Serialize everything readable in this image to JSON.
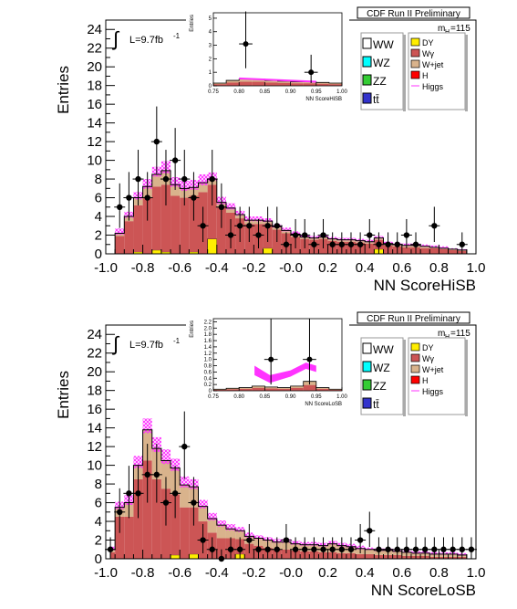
{
  "colors": {
    "WW": "#ffffff",
    "WZ": "#00ffff",
    "ZZ": "#33cc33",
    "tt": "#3333cc",
    "DY": "#ffee00",
    "Wgamma": "#cc5555",
    "Wjet": "#d9b38c",
    "H": "#ff0000",
    "Higgs": "#ff33ff",
    "data": "#000000"
  },
  "panels": [
    {
      "header": "CDF Run II Preliminary",
      "mass_label": "m",
      "mass_sub": "H",
      "mass_value": "=115",
      "lumi": "L=9.7fb",
      "lumi_sup": "-1",
      "integral_sign": "∫",
      "legend_left": [
        "WW",
        "WZ",
        "ZZ",
        "tt̄"
      ],
      "legend_right": [
        "DY",
        "Wγ",
        "W+jet",
        "H",
        "Higgs"
      ],
      "inset": {
        "ylabel": "Entries",
        "xlabel": "NN ScoreHiSB",
        "x_ticks": [
          "0.75",
          "0.80",
          "0.85",
          "0.90",
          "0.95",
          "1.00"
        ],
        "y_ticks": [
          "0",
          "1",
          "2",
          "3",
          "4",
          "5"
        ],
        "xlim": [
          0.75,
          1.0
        ],
        "ylim": [
          0,
          5.4
        ],
        "bkg_edges": [
          0.75,
          0.775,
          0.8,
          0.825,
          0.85,
          0.875,
          0.9,
          0.925,
          0.95,
          0.975,
          1.0
        ],
        "bkg_values": [
          0.2,
          0.4,
          0.5,
          0.5,
          0.4,
          0.35,
          0.3,
          0.3,
          0.25,
          0.2
        ],
        "points": [
          {
            "x": 0.813,
            "y": 3.1,
            "ex": 0.013,
            "eyl": 1.8,
            "eyh": 2.4
          },
          {
            "x": 0.94,
            "y": 1.0,
            "ex": 0.013,
            "eyl": 0.8,
            "eyh": 1.3
          }
        ]
      },
      "chart_data": {
        "type": "bar",
        "xlabel": "NN ScoreHiSB",
        "ylabel": "Entries",
        "xlim": [
          -1.0,
          1.0
        ],
        "ylim": [
          0,
          25
        ],
        "x_ticks": [
          "-1.0",
          "-0.8",
          "-0.6",
          "-0.4",
          "-0.2",
          "-0.0",
          "0.2",
          "0.4",
          "0.6",
          "0.8",
          "1.0"
        ],
        "y_ticks": [
          "0",
          "2",
          "4",
          "6",
          "8",
          "10",
          "12",
          "14",
          "16",
          "18",
          "20",
          "22",
          "24"
        ],
        "bin_edges": [
          -0.95,
          -0.9,
          -0.85,
          -0.8,
          -0.75,
          -0.7,
          -0.65,
          -0.6,
          -0.55,
          -0.5,
          -0.45,
          -0.4,
          -0.35,
          -0.3,
          -0.25,
          -0.2,
          -0.15,
          -0.1,
          -0.05,
          0.0,
          0.05,
          0.1,
          0.15,
          0.2,
          0.25,
          0.3,
          0.35,
          0.4,
          0.45,
          0.5,
          0.55,
          0.6,
          0.65,
          0.7,
          0.75,
          0.8,
          0.85,
          0.9,
          0.95
        ],
        "wgamma": [
          1.9,
          3.5,
          5.0,
          6.0,
          6.8,
          7.2,
          6.2,
          6.0,
          6.0,
          6.6,
          5.8,
          5.0,
          4.4,
          3.8,
          3.2,
          3.2,
          2.6,
          2.6,
          2.2,
          1.8,
          1.6,
          1.5,
          1.6,
          1.4,
          1.3,
          1.3,
          1.2,
          1.1,
          1.0,
          0.9,
          0.8,
          0.7,
          0.7,
          0.6,
          0.6,
          0.5,
          0.4,
          0.3
        ],
        "wjet": [
          0.3,
          0.5,
          0.8,
          1.2,
          1.3,
          1.5,
          1.2,
          1.0,
          0.9,
          1.0,
          0.6,
          0.5,
          0.5,
          0.4,
          0.4,
          0.4,
          0.3,
          0.3,
          0.3,
          0.3,
          0.2,
          0.2,
          0.2,
          0.2,
          0.2,
          0.2,
          0.2,
          0.2,
          0.2,
          0.2,
          0.2,
          0.2,
          0.2,
          0.2,
          0.1,
          0.1,
          0.1,
          0.1
        ],
        "dy": [
          0,
          0,
          0.2,
          0,
          0.4,
          0.2,
          0,
          0,
          0.2,
          0,
          1.6,
          0,
          0,
          0,
          0,
          0,
          0.6,
          0,
          0,
          0,
          0,
          0,
          0,
          0,
          0,
          0,
          0,
          0,
          0.5,
          0,
          0,
          0,
          0,
          0,
          0,
          0,
          0,
          0
        ],
        "band": [
          0.5,
          0.5,
          0.6,
          0.8,
          0.8,
          1.0,
          0.8,
          0.8,
          0.8,
          0.9,
          0.7,
          0.6,
          0.5,
          0.4,
          0.4,
          0.4,
          0.3,
          0.3,
          0.3,
          0.3,
          0.2,
          0.2,
          0.2,
          0.2,
          0.2,
          0.2,
          0.2,
          0.2,
          0.2,
          0.2,
          0.2,
          0.2,
          0.2,
          0.2,
          0.2,
          0.2,
          0.1,
          0.1
        ],
        "data_points": [
          {
            "x": -0.925,
            "y": 5
          },
          {
            "x": -0.875,
            "y": 6
          },
          {
            "x": -0.825,
            "y": 8
          },
          {
            "x": -0.775,
            "y": 6
          },
          {
            "x": -0.725,
            "y": 12
          },
          {
            "x": -0.675,
            "y": 8
          },
          {
            "x": -0.625,
            "y": 10
          },
          {
            "x": -0.575,
            "y": 8
          },
          {
            "x": -0.525,
            "y": 6
          },
          {
            "x": -0.475,
            "y": 3
          },
          {
            "x": -0.425,
            "y": 8
          },
          {
            "x": -0.375,
            "y": 5
          },
          {
            "x": -0.325,
            "y": 2
          },
          {
            "x": -0.275,
            "y": 3
          },
          {
            "x": -0.225,
            "y": 3
          },
          {
            "x": -0.175,
            "y": 2
          },
          {
            "x": -0.125,
            "y": 3
          },
          {
            "x": -0.075,
            "y": 3
          },
          {
            "x": -0.025,
            "y": 1
          },
          {
            "x": 0.025,
            "y": 2
          },
          {
            "x": 0.075,
            "y": 2
          },
          {
            "x": 0.125,
            "y": 1
          },
          {
            "x": 0.175,
            "y": 2
          },
          {
            "x": 0.225,
            "y": 1
          },
          {
            "x": 0.275,
            "y": 1
          },
          {
            "x": 0.325,
            "y": 1
          },
          {
            "x": 0.375,
            "y": 1
          },
          {
            "x": 0.425,
            "y": 2
          },
          {
            "x": 0.475,
            "y": 1
          },
          {
            "x": 0.525,
            "y": 1
          },
          {
            "x": 0.575,
            "y": 1
          },
          {
            "x": 0.625,
            "y": 2
          },
          {
            "x": 0.675,
            "y": 1
          },
          {
            "x": 0.775,
            "y": 3
          },
          {
            "x": 0.925,
            "y": 1
          }
        ]
      }
    },
    {
      "header": "CDF Run II Preliminary",
      "mass_label": "m",
      "mass_sub": "H",
      "mass_value": "=115",
      "lumi": "L=9.7fb",
      "lumi_sup": "-1",
      "integral_sign": "∫",
      "legend_left": [
        "WW",
        "WZ",
        "ZZ",
        "tt̄"
      ],
      "legend_right": [
        "DY",
        "Wγ",
        "W+jet",
        "H",
        "Higgs"
      ],
      "inset": {
        "ylabel": "Entries",
        "xlabel": "NN ScoreLoSB",
        "x_ticks": [
          "0.75",
          "0.80",
          "0.85",
          "0.90",
          "0.95",
          "1.00"
        ],
        "y_ticks": [
          "0",
          "0.2",
          "0.4",
          "0.6",
          "0.8",
          "1.0",
          "1.2",
          "1.4",
          "1.6",
          "1.8",
          "2.0",
          "2.2"
        ],
        "xlim": [
          0.75,
          1.0
        ],
        "ylim": [
          0,
          2.3
        ],
        "bkg_edges": [
          0.75,
          0.775,
          0.8,
          0.825,
          0.85,
          0.875,
          0.9,
          0.925,
          0.95,
          0.975,
          1.0
        ],
        "bkg_values": [
          0.05,
          0.08,
          0.1,
          0.15,
          0.12,
          0.1,
          0.15,
          0.3,
          0.1,
          0.05
        ],
        "band": {
          "x": [
            0.83,
            0.86,
            0.9,
            0.93,
            0.95
          ],
          "lo": [
            0.5,
            0.25,
            0.45,
            0.7,
            0.6
          ],
          "hi": [
            0.8,
            0.5,
            0.65,
            0.9,
            0.8
          ]
        },
        "points": [
          {
            "x": 0.862,
            "y": 1.0,
            "ex": 0.013,
            "eyl": 0.8,
            "eyh": 1.3
          },
          {
            "x": 0.937,
            "y": 1.0,
            "ex": 0.013,
            "eyl": 0.8,
            "eyh": 1.3
          }
        ]
      },
      "chart_data": {
        "type": "bar",
        "xlabel": "NN ScoreLoSB",
        "ylabel": "Entries",
        "xlim": [
          -1.0,
          1.0
        ],
        "ylim": [
          0,
          25
        ],
        "x_ticks": [
          "-1.0",
          "-0.8",
          "-0.6",
          "-0.4",
          "-0.2",
          "-0.0",
          "0.2",
          "0.4",
          "0.6",
          "0.8",
          "1.0"
        ],
        "y_ticks": [
          "0",
          "2",
          "4",
          "6",
          "8",
          "10",
          "12",
          "14",
          "16",
          "18",
          "20",
          "22",
          "24"
        ],
        "bin_edges": [
          -0.975,
          -0.95,
          -0.9,
          -0.85,
          -0.8,
          -0.75,
          -0.7,
          -0.65,
          -0.6,
          -0.55,
          -0.5,
          -0.45,
          -0.4,
          -0.35,
          -0.3,
          -0.25,
          -0.2,
          -0.15,
          -0.1,
          -0.05,
          0.0,
          0.05,
          0.1,
          0.15,
          0.2,
          0.25,
          0.3,
          0.35,
          0.4,
          0.45,
          0.5,
          0.55,
          0.6,
          0.65,
          0.7,
          0.75,
          0.8,
          0.85,
          0.9,
          0.95
        ],
        "wgamma": [
          0.7,
          4.5,
          4.5,
          8.5,
          10.5,
          8.5,
          7.5,
          6.5,
          5.5,
          5.0,
          4.0,
          2.8,
          2.2,
          2.2,
          1.6,
          1.6,
          1.4,
          1.2,
          1.0,
          1.0,
          0.9,
          0.8,
          0.8,
          0.7,
          0.7,
          0.6,
          0.6,
          0.5,
          0.5,
          0.4,
          0.4,
          0.4,
          0.3,
          0.3,
          0.3,
          0.2,
          0.2,
          0.2,
          0.2
        ],
        "wjet": [
          0.3,
          1.0,
          1.5,
          1.5,
          3.3,
          3.3,
          3.0,
          2.8,
          2.4,
          2.2,
          1.6,
          1.5,
          1.4,
          1.0,
          0.9,
          0.8,
          0.8,
          0.8,
          0.8,
          0.8,
          0.7,
          0.7,
          0.7,
          0.7,
          0.9,
          0.8,
          0.7,
          0.6,
          0.5,
          0.5,
          0.5,
          0.4,
          0.4,
          0.3,
          0.3,
          0.3,
          0.3,
          0.3,
          0.2
        ],
        "dy": [
          0,
          0,
          0,
          0,
          0,
          0,
          0,
          0.4,
          0,
          0.5,
          0,
          0,
          0,
          0,
          0.5,
          0,
          0,
          0,
          0,
          0,
          0,
          0,
          0,
          0,
          0,
          0,
          0,
          0,
          0,
          0,
          0,
          0,
          0,
          0,
          0,
          0,
          0,
          0,
          0
        ],
        "band": [
          0.3,
          0.6,
          0.8,
          1.0,
          1.2,
          1.2,
          1.2,
          1.0,
          0.9,
          0.8,
          0.7,
          0.6,
          0.5,
          0.5,
          0.4,
          0.4,
          0.3,
          0.3,
          0.3,
          0.3,
          0.3,
          0.3,
          0.3,
          0.3,
          0.3,
          0.3,
          0.3,
          0.3,
          0.2,
          0.2,
          0.2,
          0.2,
          0.2,
          0.2,
          0.2,
          0.2,
          0.2,
          0.2,
          0.2
        ],
        "data_points": [
          {
            "x": -0.975,
            "y": 1
          },
          {
            "x": -0.925,
            "y": 5
          },
          {
            "x": -0.875,
            "y": 7
          },
          {
            "x": -0.825,
            "y": 7
          },
          {
            "x": -0.775,
            "y": 9
          },
          {
            "x": -0.725,
            "y": 9
          },
          {
            "x": -0.675,
            "y": 6
          },
          {
            "x": -0.625,
            "y": 7
          },
          {
            "x": -0.575,
            "y": 12
          },
          {
            "x": -0.525,
            "y": 6
          },
          {
            "x": -0.475,
            "y": 2
          },
          {
            "x": -0.425,
            "y": 1
          },
          {
            "x": -0.375,
            "y": 0
          },
          {
            "x": -0.325,
            "y": 1
          },
          {
            "x": -0.275,
            "y": 1
          },
          {
            "x": -0.225,
            "y": 2
          },
          {
            "x": -0.175,
            "y": 1
          },
          {
            "x": -0.125,
            "y": 1
          },
          {
            "x": -0.075,
            "y": 1
          },
          {
            "x": -0.025,
            "y": 2
          },
          {
            "x": 0.025,
            "y": 1
          },
          {
            "x": 0.075,
            "y": 1
          },
          {
            "x": 0.125,
            "y": 1
          },
          {
            "x": 0.175,
            "y": 1
          },
          {
            "x": 0.225,
            "y": 1
          },
          {
            "x": 0.275,
            "y": 1
          },
          {
            "x": 0.325,
            "y": 1
          },
          {
            "x": 0.375,
            "y": 2
          },
          {
            "x": 0.425,
            "y": 3
          },
          {
            "x": 0.475,
            "y": 1
          },
          {
            "x": 0.525,
            "y": 1
          },
          {
            "x": 0.575,
            "y": 1
          },
          {
            "x": 0.625,
            "y": 1
          },
          {
            "x": 0.675,
            "y": 1
          },
          {
            "x": 0.725,
            "y": 1
          },
          {
            "x": 0.775,
            "y": 1
          },
          {
            "x": 0.825,
            "y": 1
          },
          {
            "x": 0.875,
            "y": 1
          },
          {
            "x": 0.925,
            "y": 1
          },
          {
            "x": 0.975,
            "y": 1
          }
        ]
      }
    }
  ]
}
